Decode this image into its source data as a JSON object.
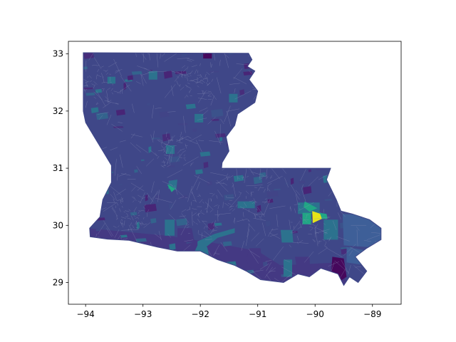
{
  "map": {
    "projection": "plate carree (longitude / latitude)",
    "xlim": [
      -94.3,
      -88.5
    ],
    "ylim": [
      28.62,
      33.22
    ],
    "x_ticks": [
      {
        "value": -94,
        "label": "−94"
      },
      {
        "value": -93,
        "label": "−93"
      },
      {
        "value": -92,
        "label": "−92"
      },
      {
        "value": -91,
        "label": "−91"
      },
      {
        "value": -90,
        "label": "−90"
      },
      {
        "value": -89,
        "label": "−89"
      }
    ],
    "y_ticks": [
      {
        "value": 29,
        "label": "29"
      },
      {
        "value": 30,
        "label": "30"
      },
      {
        "value": 31,
        "label": "31"
      },
      {
        "value": 32,
        "label": "32"
      },
      {
        "value": 33,
        "label": "33"
      }
    ],
    "colormap": [
      "#440154",
      "#3b528b",
      "#21918c",
      "#5ec962",
      "#fde725"
    ],
    "colors": {
      "base_fill": "#3f4788",
      "boundary": "#8a8fb8",
      "coast_dark": "#443983",
      "teal": "#2c728e",
      "green": "#21a685",
      "yellow": "#e5e419",
      "purple": "#46085c"
    },
    "state_outline": [
      [
        -94.04,
        33.02
      ],
      [
        -91.16,
        33.01
      ],
      [
        -91.1,
        32.9
      ],
      [
        -91.18,
        32.78
      ],
      [
        -91.05,
        32.7
      ],
      [
        -91.15,
        32.55
      ],
      [
        -91.0,
        32.35
      ],
      [
        -91.05,
        32.15
      ],
      [
        -91.35,
        31.95
      ],
      [
        -91.4,
        31.75
      ],
      [
        -91.55,
        31.55
      ],
      [
        -91.5,
        31.3
      ],
      [
        -91.62,
        31.1
      ],
      [
        -91.63,
        31.0
      ],
      [
        -89.73,
        31.0
      ],
      [
        -89.8,
        30.8
      ],
      [
        -89.63,
        30.45
      ],
      [
        -89.55,
        30.25
      ],
      [
        -89.35,
        30.2
      ],
      [
        -89.05,
        30.1
      ],
      [
        -88.85,
        29.95
      ],
      [
        -88.85,
        29.75
      ],
      [
        -89.1,
        29.6
      ],
      [
        -89.3,
        29.45
      ],
      [
        -89.1,
        29.2
      ],
      [
        -89.25,
        29.0
      ],
      [
        -89.4,
        29.1
      ],
      [
        -89.5,
        28.95
      ],
      [
        -89.6,
        29.15
      ],
      [
        -89.9,
        29.25
      ],
      [
        -90.1,
        29.1
      ],
      [
        -90.3,
        29.15
      ],
      [
        -90.55,
        29.0
      ],
      [
        -90.95,
        29.05
      ],
      [
        -91.2,
        29.2
      ],
      [
        -91.4,
        29.3
      ],
      [
        -91.7,
        29.4
      ],
      [
        -92.0,
        29.55
      ],
      [
        -92.4,
        29.55
      ],
      [
        -92.75,
        29.62
      ],
      [
        -93.25,
        29.74
      ],
      [
        -93.62,
        29.76
      ],
      [
        -93.92,
        29.8
      ],
      [
        -93.93,
        29.95
      ],
      [
        -93.75,
        30.15
      ],
      [
        -93.7,
        30.45
      ],
      [
        -93.55,
        30.75
      ],
      [
        -93.55,
        31.05
      ],
      [
        -93.7,
        31.3
      ],
      [
        -93.85,
        31.55
      ],
      [
        -94.0,
        31.8
      ],
      [
        -94.04,
        32.0
      ],
      [
        -94.04,
        33.02
      ]
    ],
    "regions": [
      {
        "color": "#2c728e",
        "points": [
          [
            -93.62,
            32.6
          ],
          [
            -93.48,
            32.6
          ],
          [
            -93.48,
            32.48
          ],
          [
            -93.62,
            32.48
          ]
        ]
      },
      {
        "color": "#2c728e",
        "points": [
          [
            -92.55,
            30.78
          ],
          [
            -92.4,
            30.8
          ],
          [
            -92.42,
            30.62
          ],
          [
            -92.56,
            30.64
          ]
        ]
      },
      {
        "color": "#21a685",
        "points": [
          [
            -92.58,
            30.72
          ],
          [
            -92.44,
            30.64
          ],
          [
            -92.5,
            30.58
          ]
        ]
      },
      {
        "color": "#2c728e",
        "points": [
          [
            -91.35,
            30.42
          ],
          [
            -91.05,
            30.42
          ],
          [
            -91.05,
            30.3
          ],
          [
            -91.35,
            30.3
          ]
        ]
      },
      {
        "color": "#2c728e",
        "points": [
          [
            -92.62,
            30.1
          ],
          [
            -92.45,
            30.1
          ],
          [
            -92.45,
            29.82
          ],
          [
            -92.62,
            29.82
          ]
        ]
      },
      {
        "color": "#2c728e",
        "points": [
          [
            -92.05,
            29.72
          ],
          [
            -91.75,
            29.85
          ],
          [
            -91.4,
            29.95
          ],
          [
            -91.4,
            29.87
          ],
          [
            -91.7,
            29.78
          ],
          [
            -91.9,
            29.62
          ],
          [
            -92.05,
            29.62
          ]
        ]
      },
      {
        "color": "#2c728e",
        "points": [
          [
            -92.05,
            29.65
          ],
          [
            -91.88,
            29.62
          ],
          [
            -91.85,
            29.48
          ],
          [
            -92.0,
            29.42
          ],
          [
            -92.12,
            29.5
          ]
        ]
      },
      {
        "color": "#2c728e",
        "points": [
          [
            -93.9,
            30.78
          ],
          [
            -93.6,
            30.78
          ],
          [
            -93.6,
            30.55
          ],
          [
            -93.9,
            30.55
          ]
        ]
      },
      {
        "color": "#2c728e",
        "points": [
          [
            -90.6,
            29.92
          ],
          [
            -90.4,
            29.92
          ],
          [
            -90.38,
            29.7
          ],
          [
            -90.58,
            29.7
          ]
        ]
      },
      {
        "color": "#2c728e",
        "points": [
          [
            -90.55,
            29.4
          ],
          [
            -90.4,
            29.4
          ],
          [
            -90.4,
            29.1
          ],
          [
            -90.55,
            29.1
          ]
        ]
      },
      {
        "color": "#2c728e",
        "points": [
          [
            -90.3,
            30.4
          ],
          [
            -89.92,
            30.4
          ],
          [
            -89.92,
            30.2
          ],
          [
            -90.3,
            30.2
          ]
        ]
      },
      {
        "color": "#2c728e",
        "points": [
          [
            -89.85,
            30.1
          ],
          [
            -89.6,
            30.1
          ],
          [
            -89.6,
            29.75
          ],
          [
            -89.85,
            29.75
          ]
        ]
      },
      {
        "color": "#3e5f98",
        "points": [
          [
            -89.52,
            30.2
          ],
          [
            -89.05,
            30.18
          ],
          [
            -88.85,
            29.95
          ],
          [
            -88.85,
            29.75
          ],
          [
            -89.08,
            29.62
          ],
          [
            -89.5,
            29.65
          ]
        ]
      },
      {
        "color": "#3e5f98",
        "points": [
          [
            -89.45,
            29.62
          ],
          [
            -89.05,
            29.55
          ],
          [
            -89.1,
            29.3
          ],
          [
            -89.45,
            29.35
          ]
        ]
      },
      {
        "color": "#21a685",
        "points": [
          [
            -90.18,
            30.42
          ],
          [
            -89.96,
            30.3
          ],
          [
            -90.1,
            30.24
          ],
          [
            -90.2,
            30.32
          ]
        ]
      },
      {
        "color": "#21a685",
        "points": [
          [
            -90.22,
            30.22
          ],
          [
            -90.07,
            30.22
          ],
          [
            -90.07,
            30.02
          ],
          [
            -90.22,
            30.02
          ]
        ]
      },
      {
        "color": "#e5e419",
        "points": [
          [
            -90.05,
            30.25
          ],
          [
            -89.9,
            30.2
          ],
          [
            -89.85,
            30.13
          ],
          [
            -90.04,
            30.04
          ]
        ]
      },
      {
        "color": "#21a685",
        "points": [
          [
            -89.92,
            30.22
          ],
          [
            -89.8,
            30.2
          ],
          [
            -89.78,
            30.12
          ],
          [
            -89.88,
            30.11
          ]
        ]
      },
      {
        "color": "#46085c",
        "points": [
          [
            -89.7,
            29.45
          ],
          [
            -89.5,
            29.42
          ],
          [
            -89.45,
            29.1
          ],
          [
            -89.6,
            29.0
          ],
          [
            -89.72,
            29.15
          ]
        ]
      },
      {
        "color": "#443983",
        "points": [
          [
            -92.4,
            29.95
          ],
          [
            -92.15,
            29.95
          ],
          [
            -92.1,
            29.7
          ],
          [
            -92.4,
            29.72
          ]
        ]
      },
      {
        "color": "#443983",
        "points": [
          [
            -91.15,
            29.6
          ],
          [
            -90.95,
            29.6
          ],
          [
            -90.92,
            29.25
          ],
          [
            -91.1,
            29.22
          ],
          [
            -91.2,
            29.38
          ]
        ]
      },
      {
        "color": "#443983",
        "points": [
          [
            -90.35,
            29.45
          ],
          [
            -90.1,
            29.45
          ],
          [
            -90.08,
            29.2
          ],
          [
            -90.3,
            29.15
          ]
        ]
      },
      {
        "color": "#46085c",
        "points": [
          [
            -93.95,
            31.25
          ],
          [
            -93.8,
            31.25
          ],
          [
            -93.8,
            31.12
          ],
          [
            -93.95,
            31.12
          ]
        ]
      },
      {
        "color": "#46085c",
        "points": [
          [
            -91.95,
            33.02
          ],
          [
            -91.8,
            33.02
          ],
          [
            -91.8,
            32.92
          ],
          [
            -91.95,
            32.92
          ]
        ]
      },
      {
        "color": "#2c728e",
        "points": [
          [
            -92.1,
            31.95
          ],
          [
            -91.95,
            31.95
          ],
          [
            -91.95,
            31.8
          ],
          [
            -92.1,
            31.8
          ]
        ]
      },
      {
        "color": "#2c728e",
        "points": [
          [
            -92.9,
            32.7
          ],
          [
            -92.75,
            32.7
          ],
          [
            -92.75,
            32.55
          ],
          [
            -92.9,
            32.55
          ]
        ]
      },
      {
        "color": "#2c728e",
        "points": [
          [
            -91.5,
            32.3
          ],
          [
            -91.35,
            32.3
          ],
          [
            -91.35,
            32.15
          ],
          [
            -91.5,
            32.15
          ]
        ]
      },
      {
        "color": "#2c728e",
        "points": [
          [
            -92.6,
            31.4
          ],
          [
            -92.45,
            31.4
          ],
          [
            -92.45,
            31.25
          ],
          [
            -92.6,
            31.25
          ]
        ]
      }
    ]
  }
}
